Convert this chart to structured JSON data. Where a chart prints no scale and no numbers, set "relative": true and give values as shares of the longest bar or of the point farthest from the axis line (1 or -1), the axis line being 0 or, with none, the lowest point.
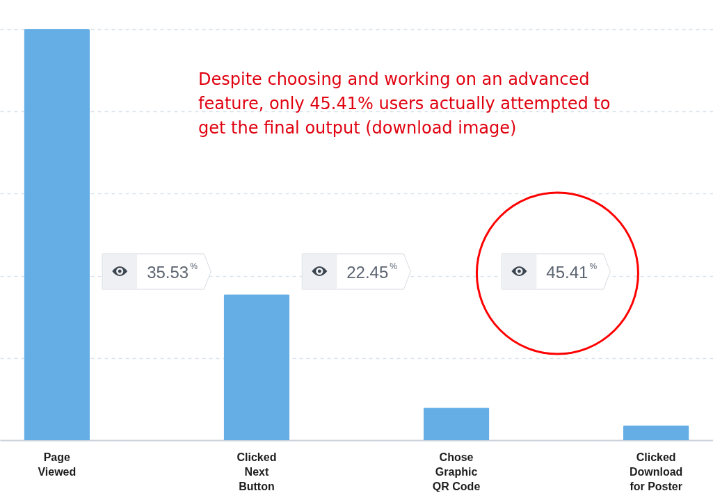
{
  "chart_data": {
    "type": "bar",
    "relative": true,
    "categories": [
      "Page Viewed",
      "Clicked Next Button",
      "Chose Graphic QR Code",
      "Clicked Download for Poster"
    ],
    "values": [
      1,
      0.355,
      0.079,
      0.036
    ],
    "color": "#64aee5",
    "grid": "y",
    "annotations": [
      "Despite choosing and working on an advanced feature, only 45.41% users actually attempted to get the final output (download image)",
      "35.53$^{%}$",
      "22.45$^{%}$",
      "45.41$^{%}$"
    ]
  }
}
